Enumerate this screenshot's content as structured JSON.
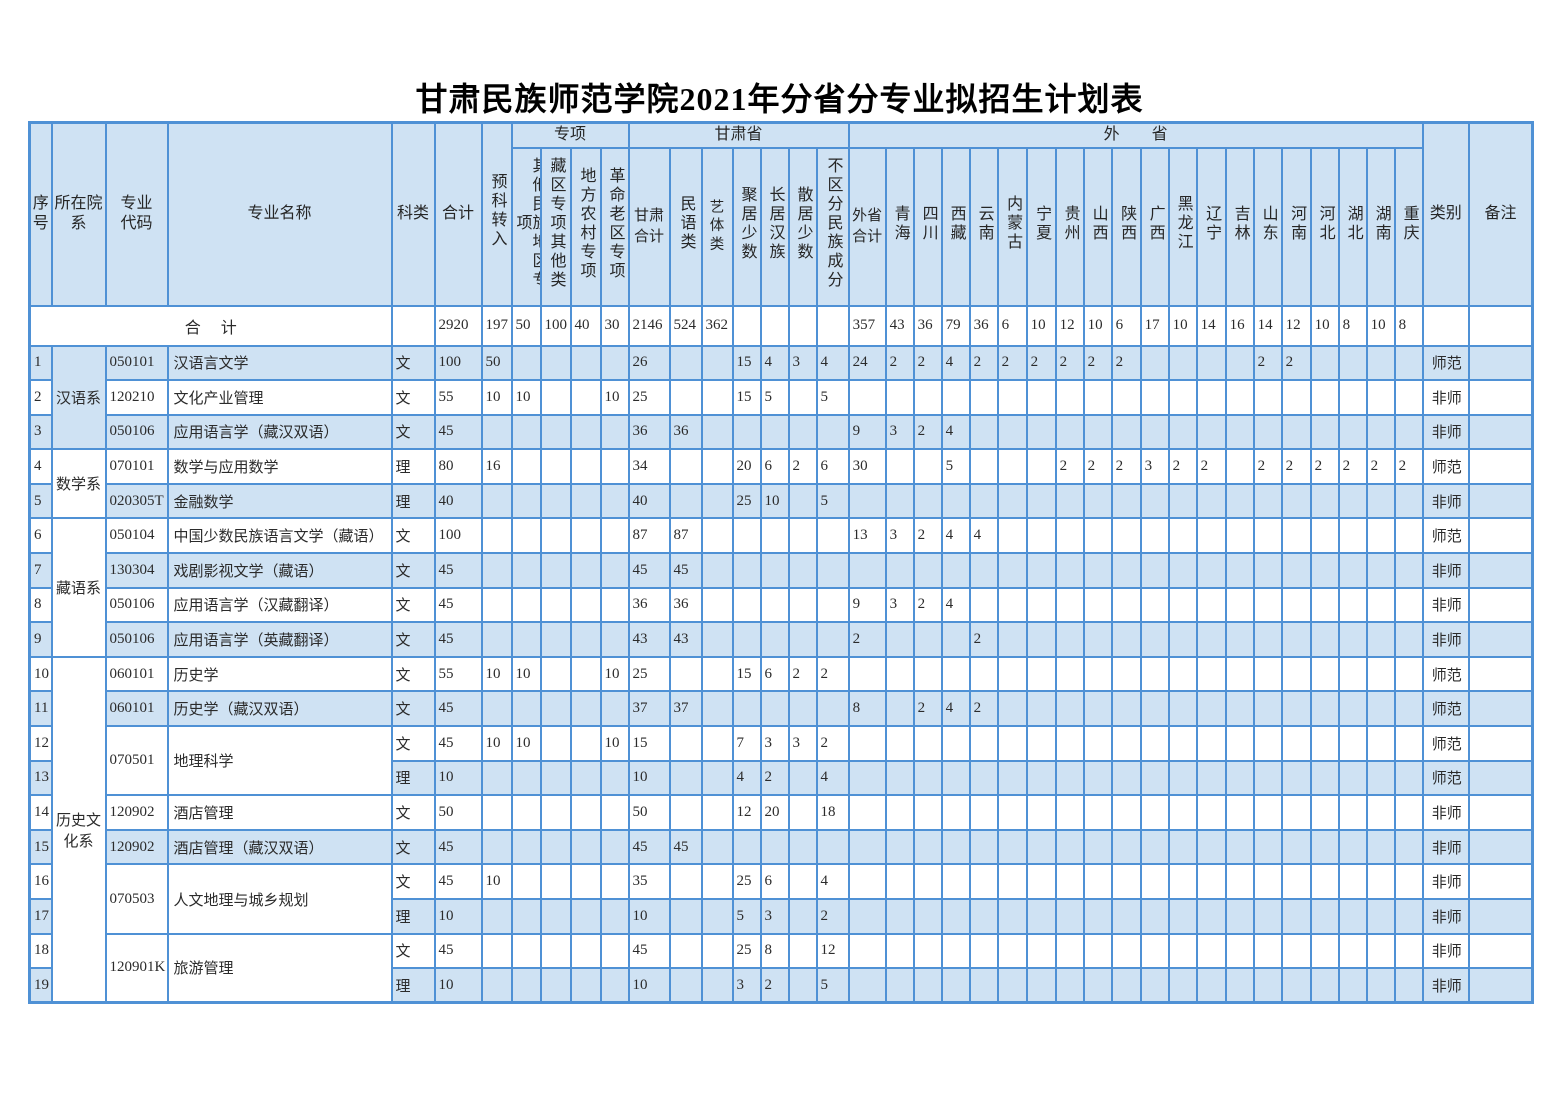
{
  "page": {
    "title": "甘肃民族师范学院2021年分省分专业拟招生计划表"
  },
  "table": {
    "groups": [
      {
        "id": "special",
        "label": "专项",
        "span": 4
      },
      {
        "id": "gansu",
        "label": "甘肃省",
        "span": 7
      },
      {
        "id": "other-provinces",
        "label": "外　　省",
        "span": 20
      }
    ],
    "columns": [
      {
        "key": "no",
        "label": "序号"
      },
      {
        "key": "yuanxi",
        "label": "所在院系"
      },
      {
        "key": "daima",
        "label": "专业代码"
      },
      {
        "key": "mingcheng",
        "label": "专业名称"
      },
      {
        "key": "kelei",
        "label": "科类"
      },
      {
        "key": "heji",
        "label": "合计"
      },
      {
        "key": "yuke",
        "label": "预科转入"
      },
      {
        "key": "qita",
        "label": "其他民族地区专项"
      },
      {
        "key": "zangqu",
        "label": "藏区专项其他类"
      },
      {
        "key": "difang",
        "label": "地方农村专项"
      },
      {
        "key": "geming",
        "label": "革命老区专项"
      },
      {
        "key": "gs_heji",
        "label": "甘肃合计"
      },
      {
        "key": "minyu",
        "label": "民语类"
      },
      {
        "key": "yiti",
        "label": "艺体类"
      },
      {
        "key": "juju",
        "label": "聚居少数"
      },
      {
        "key": "changju",
        "label": "长居汉族"
      },
      {
        "key": "sanju",
        "label": "散居少数"
      },
      {
        "key": "buqufen",
        "label": "不区分民族成分"
      },
      {
        "key": "ws_heji",
        "label": "外省合计"
      },
      {
        "key": "qinghai",
        "label": "青海"
      },
      {
        "key": "sichuan",
        "label": "四川"
      },
      {
        "key": "xizang",
        "label": "西藏"
      },
      {
        "key": "yunnan",
        "label": "云南"
      },
      {
        "key": "neimenggu",
        "label": "内蒙古"
      },
      {
        "key": "ningxia",
        "label": "宁夏"
      },
      {
        "key": "guizhou",
        "label": "贵州"
      },
      {
        "key": "shanxi",
        "label": "山西"
      },
      {
        "key": "shaanxi",
        "label": "陕西"
      },
      {
        "key": "guangxi",
        "label": "广西"
      },
      {
        "key": "heilongjiang",
        "label": "黑龙江"
      },
      {
        "key": "liaoning",
        "label": "辽宁"
      },
      {
        "key": "jilin",
        "label": "吉林"
      },
      {
        "key": "shandong",
        "label": "山东"
      },
      {
        "key": "henan",
        "label": "河南"
      },
      {
        "key": "hebei",
        "label": "河北"
      },
      {
        "key": "hubei",
        "label": "湖北"
      },
      {
        "key": "hunan",
        "label": "湖南"
      },
      {
        "key": "chongqing",
        "label": "重庆"
      },
      {
        "key": "leibie",
        "label": "类别"
      },
      {
        "key": "beizhu",
        "label": "备注"
      }
    ],
    "total_row": {
      "label": "合　计",
      "values": {
        "kelei": "",
        "heji": "2920",
        "yuke": "197",
        "qita": "50",
        "zangqu": "100",
        "difang": "40",
        "geming": "30",
        "gs_heji": "2146",
        "minyu": "524",
        "yiti": "362",
        "juju": "",
        "changju": "",
        "sanju": "",
        "buqufen": "",
        "ws_heji": "357",
        "qinghai": "43",
        "sichuan": "36",
        "xizang": "79",
        "yunnan": "36",
        "neimenggu": "6",
        "ningxia": "10",
        "guizhou": "12",
        "shanxi": "10",
        "shaanxi": "6",
        "guangxi": "17",
        "heilongjiang": "10",
        "liaoning": "14",
        "jilin": "16",
        "shandong": "14",
        "henan": "12",
        "hebei": "10",
        "hubei": "8",
        "hunan": "10",
        "chongqing": "8",
        "leibie": "",
        "beizhu": ""
      }
    },
    "rows": [
      {
        "no": "1",
        "yuanxi": "汉语系",
        "_spans": {
          "yuanxi": 3
        },
        "daima": "050101",
        "mingcheng": "汉语言文学",
        "kelei": "文",
        "heji": "100",
        "yuke": "50",
        "gs_heji": "26",
        "juju": "15",
        "changju": "4",
        "sanju": "3",
        "buqufen": "4",
        "ws_heji": "24",
        "qinghai": "2",
        "sichuan": "2",
        "xizang": "4",
        "yunnan": "2",
        "neimenggu": "2",
        "ningxia": "2",
        "guizhou": "2",
        "shanxi": "2",
        "shaanxi": "2",
        "shandong": "2",
        "henan": "2",
        "leibie": "师范"
      },
      {
        "no": "2",
        "daima": "120210",
        "mingcheng": "文化产业管理",
        "kelei": "文",
        "heji": "55",
        "yuke": "10",
        "qita": "10",
        "geming": "10",
        "gs_heji": "25",
        "juju": "15",
        "changju": "5",
        "buqufen": "5",
        "leibie": "非师"
      },
      {
        "no": "3",
        "daima": "050106",
        "mingcheng": "应用语言学（藏汉双语）",
        "kelei": "文",
        "heji": "45",
        "gs_heji": "36",
        "minyu": "36",
        "ws_heji": "9",
        "qinghai": "3",
        "sichuan": "2",
        "xizang": "4",
        "leibie": "非师"
      },
      {
        "no": "4",
        "yuanxi": "数学系",
        "_spans": {
          "yuanxi": 2
        },
        "daima": "070101",
        "mingcheng": "数学与应用数学",
        "kelei": "理",
        "heji": "80",
        "yuke": "16",
        "gs_heji": "34",
        "juju": "20",
        "changju": "6",
        "sanju": "2",
        "buqufen": "6",
        "ws_heji": "30",
        "xizang": "5",
        "guizhou": "2",
        "shanxi": "2",
        "shaanxi": "2",
        "guangxi": "3",
        "heilongjiang": "2",
        "liaoning": "2",
        "shandong": "2",
        "henan": "2",
        "hebei": "2",
        "hubei": "2",
        "hunan": "2",
        "chongqing": "2",
        "leibie": "师范"
      },
      {
        "no": "5",
        "daima": "020305T",
        "mingcheng": "金融数学",
        "kelei": "理",
        "heji": "40",
        "gs_heji": "40",
        "juju": "25",
        "changju": "10",
        "buqufen": "5",
        "leibie": "非师"
      },
      {
        "no": "6",
        "yuanxi": "藏语系",
        "_spans": {
          "yuanxi": 4
        },
        "daima": "050104",
        "mingcheng": "中国少数民族语言文学（藏语）",
        "kelei": "文",
        "heji": "100",
        "gs_heji": "87",
        "minyu": "87",
        "ws_heji": "13",
        "qinghai": "3",
        "sichuan": "2",
        "xizang": "4",
        "yunnan": "4",
        "leibie": "师范"
      },
      {
        "no": "7",
        "daima": "130304",
        "mingcheng": "戏剧影视文学（藏语）",
        "kelei": "文",
        "heji": "45",
        "gs_heji": "45",
        "minyu": "45",
        "leibie": "非师"
      },
      {
        "no": "8",
        "daima": "050106",
        "mingcheng": "应用语言学（汉藏翻译）",
        "kelei": "文",
        "heji": "45",
        "gs_heji": "36",
        "minyu": "36",
        "ws_heji": "9",
        "qinghai": "3",
        "sichuan": "2",
        "xizang": "4",
        "leibie": "非师"
      },
      {
        "no": "9",
        "daima": "050106",
        "mingcheng": "应用语言学（英藏翻译）",
        "kelei": "文",
        "heji": "45",
        "gs_heji": "43",
        "minyu": "43",
        "ws_heji": "2",
        "yunnan": "2",
        "leibie": "非师"
      },
      {
        "no": "10",
        "yuanxi": "历史文化系",
        "_spans": {
          "yuanxi": 10
        },
        "daima": "060101",
        "mingcheng": "历史学",
        "kelei": "文",
        "heji": "55",
        "yuke": "10",
        "qita": "10",
        "geming": "10",
        "gs_heji": "25",
        "juju": "15",
        "changju": "6",
        "sanju": "2",
        "buqufen": "2",
        "leibie": "师范"
      },
      {
        "no": "11",
        "daima": "060101",
        "mingcheng": "历史学（藏汉双语）",
        "kelei": "文",
        "heji": "45",
        "gs_heji": "37",
        "minyu": "37",
        "ws_heji": "8",
        "sichuan": "2",
        "xizang": "4",
        "yunnan": "2",
        "leibie": "师范"
      },
      {
        "no": "12",
        "daima": "070501",
        "mingcheng": "地理科学",
        "_spans": {
          "daima": 2,
          "mingcheng": 2
        },
        "kelei": "文",
        "heji": "45",
        "yuke": "10",
        "qita": "10",
        "geming": "10",
        "gs_heji": "15",
        "juju": "7",
        "changju": "3",
        "sanju": "3",
        "buqufen": "2",
        "leibie": "师范"
      },
      {
        "no": "13",
        "kelei": "理",
        "heji": "10",
        "gs_heji": "10",
        "juju": "4",
        "changju": "2",
        "buqufen": "4",
        "leibie": "师范"
      },
      {
        "no": "14",
        "daima": "120902",
        "mingcheng": "酒店管理",
        "kelei": "文",
        "heji": "50",
        "gs_heji": "50",
        "juju": "12",
        "changju": "20",
        "buqufen": "18",
        "leibie": "非师"
      },
      {
        "no": "15",
        "daima": "120902",
        "mingcheng": "酒店管理（藏汉双语）",
        "kelei": "文",
        "heji": "45",
        "gs_heji": "45",
        "minyu": "45",
        "leibie": "非师"
      },
      {
        "no": "16",
        "daima": "070503",
        "mingcheng": "人文地理与城乡规划",
        "_spans": {
          "daima": 2,
          "mingcheng": 2
        },
        "kelei": "文",
        "heji": "45",
        "yuke": "10",
        "gs_heji": "35",
        "juju": "25",
        "changju": "6",
        "buqufen": "4",
        "leibie": "非师"
      },
      {
        "no": "17",
        "kelei": "理",
        "heji": "10",
        "gs_heji": "10",
        "juju": "5",
        "changju": "3",
        "buqufen": "2",
        "leibie": "非师"
      },
      {
        "no": "18",
        "daima": "120901K",
        "mingcheng": "旅游管理",
        "_spans": {
          "daima": 2,
          "mingcheng": 2
        },
        "kelei": "文",
        "heji": "45",
        "gs_heji": "45",
        "juju": "25",
        "changju": "8",
        "buqufen": "12",
        "leibie": "非师"
      },
      {
        "no": "19",
        "kelei": "理",
        "heji": "10",
        "gs_heji": "10",
        "juju": "3",
        "changju": "2",
        "buqufen": "5",
        "leibie": "非师"
      }
    ]
  }
}
